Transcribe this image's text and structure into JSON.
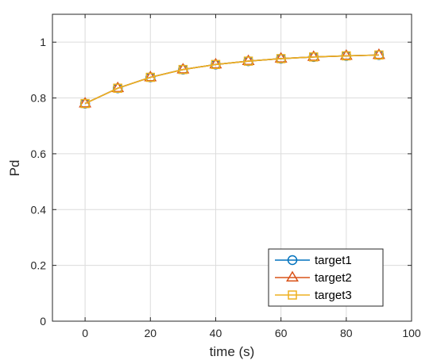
{
  "chart_data": {
    "type": "line",
    "xlabel": "time (s)",
    "ylabel": "Pd",
    "xlim": [
      -10,
      100
    ],
    "ylim": [
      0,
      1.1
    ],
    "xticks": [
      0,
      20,
      40,
      60,
      80,
      100
    ],
    "yticks": [
      0,
      0.2,
      0.4,
      0.6,
      0.8,
      1
    ],
    "x_tick_labels": [
      "0",
      "20",
      "40",
      "60",
      "80",
      "100"
    ],
    "y_tick_labels": [
      "0",
      "0.2",
      "0.4",
      "0.6",
      "0.8",
      "1"
    ],
    "grid": true,
    "legend_position": "bottom-right",
    "x": [
      0,
      10,
      20,
      30,
      40,
      50,
      60,
      70,
      80,
      90
    ],
    "series": [
      {
        "name": "target1",
        "marker": "circle",
        "color": "#0072BD",
        "values": [
          0.78,
          0.835,
          0.874,
          0.902,
          0.92,
          0.932,
          0.941,
          0.947,
          0.951,
          0.954
        ]
      },
      {
        "name": "target2",
        "marker": "triangle",
        "color": "#D95319",
        "values": [
          0.78,
          0.835,
          0.874,
          0.902,
          0.92,
          0.932,
          0.941,
          0.947,
          0.951,
          0.954
        ]
      },
      {
        "name": "target3",
        "marker": "square",
        "color": "#EDB120",
        "values": [
          0.78,
          0.835,
          0.874,
          0.902,
          0.92,
          0.932,
          0.941,
          0.947,
          0.951,
          0.954
        ]
      }
    ]
  }
}
